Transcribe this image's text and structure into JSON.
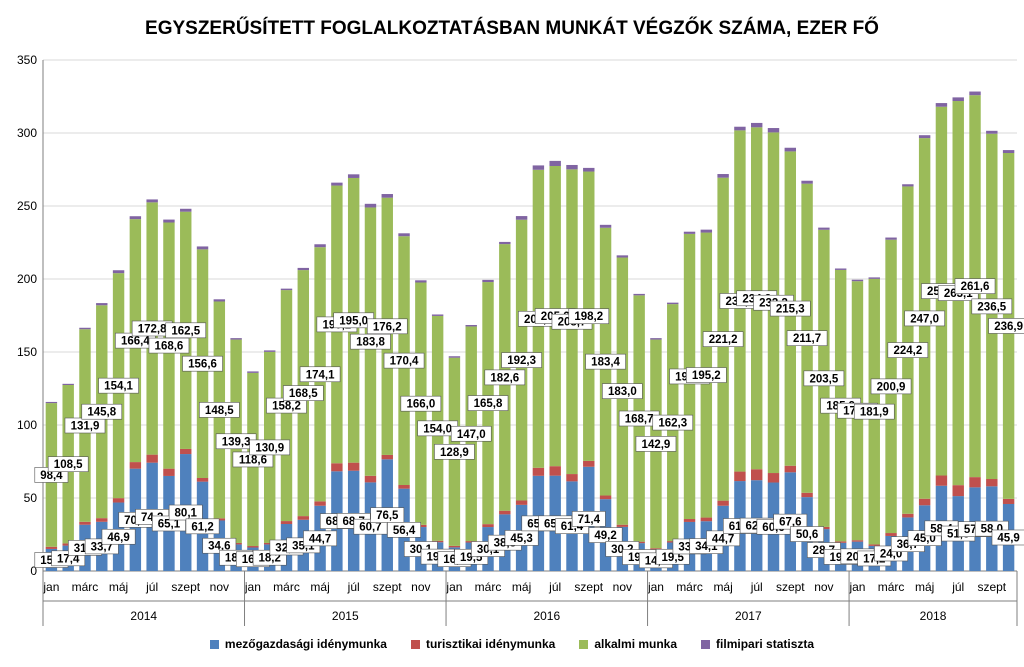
{
  "chart_data": {
    "type": "bar",
    "stacked": true,
    "title": "EGYSZERŰSÍTETT FOGLALKOZTATÁSBAN MUNKÁT VÉGZŐK SZÁMA, EZER FŐ",
    "ylim": [
      0,
      350
    ],
    "yticks": [
      "0",
      "50",
      "100",
      "150",
      "200",
      "250",
      "300",
      "350"
    ],
    "month_tick_labels": [
      "jan",
      "márc",
      "máj",
      "júl",
      "szept",
      "nov"
    ],
    "years": [
      "2014",
      "2015",
      "2016",
      "2017",
      "2018"
    ],
    "colors": {
      "agri": "#4f81bd",
      "tourism": "#c0504d",
      "casual": "#9bbb59",
      "film": "#8064a2",
      "grid": "#d9d9d9",
      "axis": "#7f7f7f"
    },
    "series": [
      {
        "name": "mezőgazdasági idénymunka",
        "label_texts": [
          "15,1",
          "17,4",
          "31,7",
          "33,7",
          "46,9",
          "70,1",
          "74,2",
          "65,1",
          "80,1",
          "61,2",
          "34,6",
          "18,2",
          "16,1",
          "18,2",
          "32,2",
          "35,1",
          "44,7",
          "68,3",
          "68,7",
          "60,7",
          "76,5",
          "56,4",
          "30,1",
          "19,7",
          "16,2",
          "19,5",
          "30,1",
          "38,8",
          "45,3",
          "65,2",
          "65,3",
          "61,4",
          "71,4",
          "49,2",
          "30,2",
          "19,1",
          "14,6",
          "19,5",
          "33,6",
          "34,1",
          "44,7",
          "61,6",
          "62,2",
          "60,6",
          "67,6",
          "50,6",
          "28,7",
          "19,3",
          "20,1",
          "17,2",
          "24,0",
          "36,7",
          "45,0",
          "58,4",
          "51,3",
          "57,3",
          "58,0",
          "45,9"
        ],
        "values": [
          15.1,
          17.4,
          31.7,
          33.7,
          46.9,
          70.1,
          74.2,
          65.1,
          80.1,
          61.2,
          34.6,
          18.2,
          16.1,
          18.2,
          32.2,
          35.1,
          44.7,
          68.3,
          68.7,
          60.7,
          76.5,
          56.4,
          30.1,
          19.7,
          16.2,
          19.5,
          30.1,
          38.8,
          45.3,
          65.2,
          65.3,
          61.4,
          71.4,
          49.2,
          30.2,
          19.1,
          14.6,
          19.5,
          33.6,
          34.1,
          44.7,
          61.6,
          62.2,
          60.6,
          67.6,
          50.6,
          28.7,
          19.3,
          20.1,
          17.2,
          24.0,
          36.7,
          45.0,
          58.4,
          51.3,
          57.3,
          58.0,
          45.9
        ]
      },
      {
        "name": "turisztikai idénymunka",
        "values": [
          1.5,
          1.5,
          2.0,
          2.5,
          3.0,
          4.5,
          5.5,
          5.0,
          3.5,
          2.5,
          1.5,
          1.0,
          1.0,
          1.0,
          2.0,
          2.5,
          3.0,
          5.5,
          5.5,
          4.5,
          3.0,
          2.5,
          1.5,
          1.0,
          1.0,
          1.0,
          2.0,
          2.5,
          3.0,
          5.5,
          6.5,
          5.0,
          4.0,
          2.5,
          1.5,
          1.0,
          1.0,
          1.0,
          2.0,
          2.5,
          3.5,
          6.5,
          7.5,
          6.5,
          4.5,
          3.0,
          1.5,
          1.0,
          1.0,
          1.0,
          2.0,
          2.5,
          4.5,
          7.0,
          7.5,
          7.0,
          5.0,
          3.5
        ]
      },
      {
        "name": "alkalmi munka",
        "label_texts": [
          "98,4",
          "108,5",
          "131,9",
          "145,8",
          "154,1",
          "166,4",
          "172,8",
          "168,6",
          "162,5",
          "156,6",
          "148,5",
          "139,3",
          "118,6",
          "130,9",
          "158,2",
          "168,5",
          "174,1",
          "190,2",
          "195,0",
          "183,8",
          "176,2",
          "170,4",
          "166,0",
          "154,0",
          "128,9",
          "147,0",
          "165,8",
          "182,6",
          "192,3",
          "204,1",
          "205,6",
          "208,7",
          "198,2",
          "183,4",
          "183,0",
          "168,7",
          "142,9",
          "162,3",
          "195,3",
          "195,2",
          "221,2",
          "233,7",
          "234,2",
          "233,3",
          "215,3",
          "211,7",
          "203,5",
          "185,9",
          "177,4",
          "181,9",
          "200,9",
          "224,2",
          "247,0",
          "252,6",
          "263,1",
          "261,6",
          "236,5",
          "236,9"
        ],
        "values": [
          98.4,
          108.5,
          131.9,
          145.8,
          154.1,
          166.4,
          172.8,
          168.6,
          162.5,
          156.6,
          148.5,
          139.3,
          118.6,
          130.9,
          158.2,
          168.5,
          174.1,
          190.2,
          195.0,
          183.8,
          176.2,
          170.4,
          166.0,
          154.0,
          128.9,
          147.0,
          165.8,
          182.6,
          192.3,
          204.1,
          205.6,
          208.7,
          198.2,
          183.4,
          183.0,
          168.7,
          142.9,
          162.3,
          195.3,
          195.2,
          221.2,
          233.7,
          234.2,
          233.3,
          215.3,
          211.7,
          203.5,
          185.9,
          177.4,
          181.9,
          200.9,
          224.2,
          247.0,
          252.6,
          263.1,
          261.6,
          236.5,
          236.9
        ]
      },
      {
        "name": "filmipari statiszta",
        "values": [
          0.8,
          0.8,
          1.0,
          1.5,
          2.0,
          2.0,
          2.0,
          2.0,
          2.0,
          2.0,
          1.5,
          1.0,
          1.0,
          1.0,
          1.0,
          1.5,
          2.0,
          2.0,
          2.5,
          2.5,
          2.5,
          2.0,
          1.5,
          1.0,
          1.0,
          1.0,
          1.5,
          1.5,
          2.5,
          3.0,
          3.5,
          3.0,
          2.5,
          2.0,
          1.5,
          1.0,
          1.0,
          1.0,
          1.5,
          2.0,
          2.5,
          2.5,
          3.0,
          3.0,
          2.5,
          2.0,
          1.5,
          1.0,
          1.0,
          1.0,
          1.5,
          1.5,
          2.0,
          2.5,
          2.5,
          2.5,
          2.0,
          2.0
        ]
      }
    ],
    "legend": [
      "mezőgazdasági idénymunka",
      "turisztikai idénymunka",
      "alkalmi munka",
      "filmipari statiszta"
    ],
    "legend_position": "bottom",
    "grid": true
  }
}
